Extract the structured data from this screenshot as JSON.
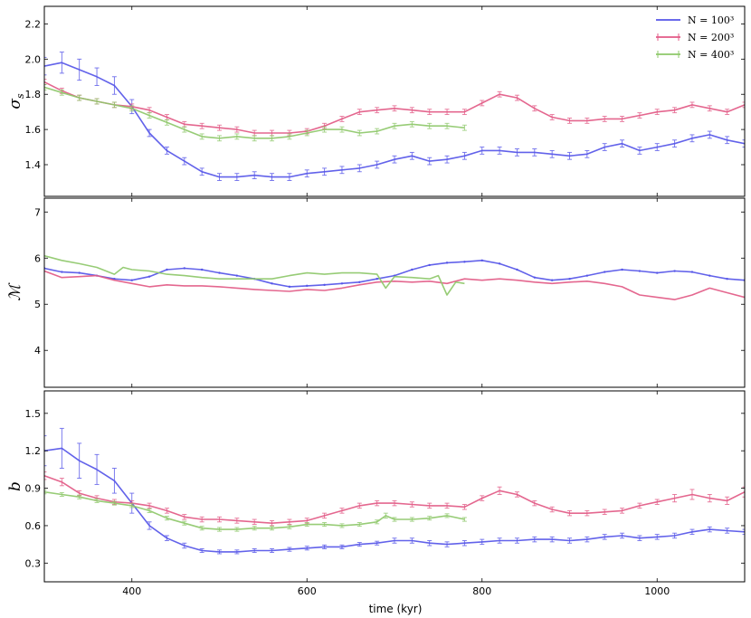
{
  "chart_data": {
    "type": "line",
    "xlabel": "time (kyr)",
    "xlim": [
      300,
      1100
    ],
    "xticks": [
      400,
      600,
      800,
      1000
    ],
    "legend": {
      "placement": "top-right",
      "entries": [
        "N = 100³",
        "N = 200³",
        "N = 400³"
      ]
    },
    "colors": {
      "N = 100³": "#5555e8",
      "N = 200³": "#e25a86",
      "N = 400³": "#8ec86a"
    },
    "panels": [
      {
        "ylabel": "σs",
        "ylim": [
          1.22,
          2.3
        ],
        "yticks": [
          1.4,
          1.6,
          1.8,
          2.0,
          2.2
        ],
        "yticklabels": [
          "1.4",
          "1.6",
          "1.8",
          "2.0",
          "2.2"
        ],
        "error_bars": true,
        "series": [
          {
            "name": "N = 100³",
            "x": [
              300,
              320,
              340,
              360,
              380,
              400,
              420,
              440,
              460,
              480,
              500,
              520,
              540,
              560,
              580,
              600,
              620,
              640,
              660,
              680,
              700,
              720,
              740,
              760,
              780,
              800,
              820,
              840,
              860,
              880,
              900,
              920,
              940,
              960,
              980,
              1000,
              1020,
              1040,
              1060,
              1080,
              1100
            ],
            "y": [
              1.96,
              1.98,
              1.94,
              1.9,
              1.85,
              1.73,
              1.58,
              1.48,
              1.42,
              1.36,
              1.33,
              1.33,
              1.34,
              1.33,
              1.33,
              1.35,
              1.36,
              1.37,
              1.38,
              1.4,
              1.43,
              1.45,
              1.42,
              1.43,
              1.45,
              1.48,
              1.48,
              1.47,
              1.47,
              1.46,
              1.45,
              1.46,
              1.5,
              1.52,
              1.48,
              1.5,
              1.52,
              1.55,
              1.57,
              1.54,
              1.52
            ],
            "err": [
              0.05,
              0.06,
              0.06,
              0.05,
              0.05,
              0.04,
              0.02,
              0.02,
              0.02,
              0.02,
              0.02,
              0.02,
              0.02,
              0.02,
              0.02,
              0.02,
              0.02,
              0.02,
              0.02,
              0.02,
              0.02,
              0.02,
              0.02,
              0.02,
              0.02,
              0.02,
              0.02,
              0.02,
              0.02,
              0.02,
              0.02,
              0.02,
              0.02,
              0.02,
              0.02,
              0.02,
              0.02,
              0.02,
              0.02,
              0.02,
              0.02
            ]
          },
          {
            "name": "N = 200³",
            "x": [
              300,
              320,
              340,
              360,
              380,
              400,
              420,
              440,
              460,
              480,
              500,
              520,
              540,
              560,
              580,
              600,
              620,
              640,
              660,
              680,
              700,
              720,
              740,
              760,
              780,
              800,
              820,
              840,
              860,
              880,
              900,
              920,
              940,
              960,
              980,
              1000,
              1020,
              1040,
              1060,
              1080,
              1100
            ],
            "y": [
              1.87,
              1.82,
              1.78,
              1.76,
              1.74,
              1.73,
              1.71,
              1.67,
              1.63,
              1.62,
              1.61,
              1.6,
              1.58,
              1.58,
              1.58,
              1.59,
              1.62,
              1.66,
              1.7,
              1.71,
              1.72,
              1.71,
              1.7,
              1.7,
              1.7,
              1.75,
              1.8,
              1.78,
              1.72,
              1.67,
              1.65,
              1.65,
              1.66,
              1.66,
              1.68,
              1.7,
              1.71,
              1.74,
              1.72,
              1.7,
              1.74
            ],
            "err": [
              0.015,
              0.015,
              0.015,
              0.015,
              0.015,
              0.015,
              0.015,
              0.015,
              0.015,
              0.015,
              0.015,
              0.015,
              0.015,
              0.015,
              0.015,
              0.015,
              0.015,
              0.015,
              0.015,
              0.015,
              0.015,
              0.015,
              0.015,
              0.015,
              0.015,
              0.015,
              0.015,
              0.015,
              0.015,
              0.015,
              0.015,
              0.015,
              0.015,
              0.015,
              0.015,
              0.015,
              0.015,
              0.015,
              0.015,
              0.015,
              0.015
            ]
          },
          {
            "name": "N = 400³",
            "x": [
              300,
              320,
              340,
              360,
              380,
              400,
              420,
              440,
              460,
              480,
              500,
              520,
              540,
              560,
              580,
              600,
              620,
              640,
              660,
              680,
              700,
              720,
              740,
              760,
              780
            ],
            "y": [
              1.84,
              1.81,
              1.78,
              1.76,
              1.74,
              1.72,
              1.68,
              1.64,
              1.6,
              1.56,
              1.55,
              1.56,
              1.55,
              1.55,
              1.56,
              1.58,
              1.6,
              1.6,
              1.58,
              1.59,
              1.62,
              1.63,
              1.62,
              1.62,
              1.61
            ],
            "err": [
              0.015,
              0.015,
              0.015,
              0.015,
              0.015,
              0.015,
              0.015,
              0.015,
              0.015,
              0.015,
              0.015,
              0.015,
              0.015,
              0.015,
              0.015,
              0.015,
              0.015,
              0.015,
              0.015,
              0.015,
              0.015,
              0.015,
              0.015,
              0.015,
              0.015
            ]
          }
        ]
      },
      {
        "ylabel": "M",
        "ylim": [
          3.2,
          7.3
        ],
        "yticks": [
          4,
          5,
          6,
          7
        ],
        "yticklabels": [
          "4",
          "5",
          "6",
          "7"
        ],
        "error_bars": false,
        "series": [
          {
            "name": "N = 100³",
            "x": [
              300,
              320,
              340,
              360,
              380,
              400,
              420,
              440,
              460,
              480,
              500,
              520,
              540,
              560,
              580,
              600,
              620,
              640,
              660,
              680,
              700,
              720,
              740,
              760,
              780,
              800,
              820,
              840,
              860,
              880,
              900,
              920,
              940,
              960,
              980,
              1000,
              1020,
              1040,
              1060,
              1080,
              1100
            ],
            "y": [
              5.78,
              5.7,
              5.68,
              5.62,
              5.55,
              5.52,
              5.6,
              5.75,
              5.78,
              5.75,
              5.68,
              5.62,
              5.55,
              5.45,
              5.38,
              5.4,
              5.42,
              5.45,
              5.48,
              5.55,
              5.62,
              5.75,
              5.85,
              5.9,
              5.92,
              5.95,
              5.88,
              5.75,
              5.58,
              5.52,
              5.55,
              5.62,
              5.7,
              5.75,
              5.72,
              5.68,
              5.72,
              5.7,
              5.62,
              5.55,
              5.52
            ]
          },
          {
            "name": "N = 200³",
            "x": [
              300,
              320,
              340,
              360,
              380,
              400,
              420,
              440,
              460,
              480,
              500,
              520,
              540,
              560,
              580,
              600,
              620,
              640,
              660,
              680,
              700,
              720,
              740,
              760,
              780,
              800,
              820,
              840,
              860,
              880,
              900,
              920,
              940,
              960,
              980,
              1000,
              1020,
              1040,
              1060,
              1080,
              1100
            ],
            "y": [
              5.72,
              5.58,
              5.6,
              5.62,
              5.52,
              5.45,
              5.38,
              5.42,
              5.4,
              5.4,
              5.38,
              5.35,
              5.32,
              5.3,
              5.28,
              5.32,
              5.3,
              5.35,
              5.42,
              5.48,
              5.5,
              5.48,
              5.5,
              5.45,
              5.55,
              5.52,
              5.55,
              5.52,
              5.48,
              5.45,
              5.48,
              5.5,
              5.45,
              5.38,
              5.2,
              5.15,
              5.1,
              5.2,
              5.35,
              5.25,
              5.15
            ]
          },
          {
            "name": "N = 400³",
            "x": [
              300,
              320,
              340,
              360,
              380,
              390,
              400,
              420,
              440,
              460,
              480,
              500,
              520,
              540,
              560,
              580,
              600,
              620,
              640,
              660,
              680,
              690,
              700,
              720,
              740,
              750,
              760,
              770,
              780
            ],
            "y": [
              6.05,
              5.95,
              5.88,
              5.8,
              5.65,
              5.8,
              5.75,
              5.72,
              5.65,
              5.62,
              5.58,
              5.55,
              5.55,
              5.55,
              5.55,
              5.62,
              5.68,
              5.65,
              5.68,
              5.68,
              5.65,
              5.35,
              5.6,
              5.58,
              5.55,
              5.62,
              5.2,
              5.48,
              5.45
            ]
          }
        ]
      },
      {
        "ylabel": "b",
        "ylim": [
          0.15,
          1.68
        ],
        "yticks": [
          0.3,
          0.6,
          0.9,
          1.2,
          1.5
        ],
        "yticklabels": [
          "0.3",
          "0.6",
          "0.9",
          "1.2",
          "1.5"
        ],
        "error_bars": true,
        "series": [
          {
            "name": "N = 100³",
            "x": [
              300,
              320,
              340,
              360,
              380,
              400,
              420,
              440,
              460,
              480,
              500,
              520,
              540,
              560,
              580,
              600,
              620,
              640,
              660,
              680,
              700,
              720,
              740,
              760,
              780,
              800,
              820,
              840,
              860,
              880,
              900,
              920,
              940,
              960,
              980,
              1000,
              1020,
              1040,
              1060,
              1080,
              1100
            ],
            "y": [
              1.2,
              1.22,
              1.12,
              1.05,
              0.96,
              0.78,
              0.6,
              0.5,
              0.44,
              0.4,
              0.39,
              0.39,
              0.4,
              0.4,
              0.41,
              0.42,
              0.43,
              0.43,
              0.45,
              0.46,
              0.48,
              0.48,
              0.46,
              0.45,
              0.46,
              0.47,
              0.48,
              0.48,
              0.49,
              0.49,
              0.48,
              0.49,
              0.51,
              0.52,
              0.5,
              0.51,
              0.52,
              0.55,
              0.57,
              0.56,
              0.55
            ],
            "err": [
              0.12,
              0.16,
              0.14,
              0.12,
              0.1,
              0.08,
              0.03,
              0.02,
              0.02,
              0.015,
              0.015,
              0.015,
              0.015,
              0.015,
              0.015,
              0.015,
              0.015,
              0.015,
              0.015,
              0.015,
              0.02,
              0.02,
              0.02,
              0.02,
              0.02,
              0.02,
              0.02,
              0.02,
              0.02,
              0.02,
              0.02,
              0.02,
              0.02,
              0.02,
              0.02,
              0.02,
              0.02,
              0.02,
              0.02,
              0.02,
              0.02
            ]
          },
          {
            "name": "N = 200³",
            "x": [
              300,
              320,
              340,
              360,
              380,
              400,
              420,
              440,
              460,
              480,
              500,
              520,
              540,
              560,
              580,
              600,
              620,
              640,
              660,
              680,
              700,
              720,
              740,
              760,
              780,
              800,
              820,
              840,
              860,
              880,
              900,
              920,
              940,
              960,
              980,
              1000,
              1020,
              1040,
              1060,
              1080,
              1100
            ],
            "y": [
              1.0,
              0.95,
              0.86,
              0.82,
              0.79,
              0.78,
              0.76,
              0.72,
              0.67,
              0.65,
              0.65,
              0.64,
              0.63,
              0.62,
              0.63,
              0.64,
              0.68,
              0.72,
              0.76,
              0.78,
              0.78,
              0.77,
              0.76,
              0.76,
              0.75,
              0.82,
              0.88,
              0.85,
              0.78,
              0.73,
              0.7,
              0.7,
              0.71,
              0.72,
              0.76,
              0.79,
              0.82,
              0.85,
              0.82,
              0.8,
              0.87
            ],
            "err": [
              0.03,
              0.03,
              0.02,
              0.02,
              0.02,
              0.02,
              0.02,
              0.02,
              0.02,
              0.02,
              0.02,
              0.02,
              0.02,
              0.02,
              0.02,
              0.02,
              0.02,
              0.02,
              0.02,
              0.02,
              0.02,
              0.02,
              0.02,
              0.02,
              0.02,
              0.02,
              0.03,
              0.02,
              0.02,
              0.02,
              0.02,
              0.02,
              0.02,
              0.02,
              0.02,
              0.02,
              0.03,
              0.04,
              0.03,
              0.03,
              0.04
            ]
          },
          {
            "name": "N = 400³",
            "x": [
              300,
              320,
              340,
              360,
              380,
              400,
              420,
              440,
              460,
              480,
              500,
              520,
              540,
              560,
              580,
              600,
              620,
              640,
              660,
              680,
              690,
              700,
              720,
              740,
              760,
              780
            ],
            "y": [
              0.87,
              0.85,
              0.83,
              0.8,
              0.78,
              0.76,
              0.72,
              0.66,
              0.62,
              0.58,
              0.57,
              0.57,
              0.58,
              0.58,
              0.59,
              0.61,
              0.61,
              0.6,
              0.61,
              0.63,
              0.68,
              0.65,
              0.65,
              0.66,
              0.68,
              0.65
            ],
            "err": [
              0.015,
              0.015,
              0.015,
              0.015,
              0.015,
              0.015,
              0.015,
              0.015,
              0.015,
              0.015,
              0.015,
              0.015,
              0.015,
              0.015,
              0.015,
              0.015,
              0.015,
              0.015,
              0.015,
              0.015,
              0.02,
              0.015,
              0.015,
              0.015,
              0.015,
              0.015
            ]
          }
        ]
      }
    ]
  }
}
